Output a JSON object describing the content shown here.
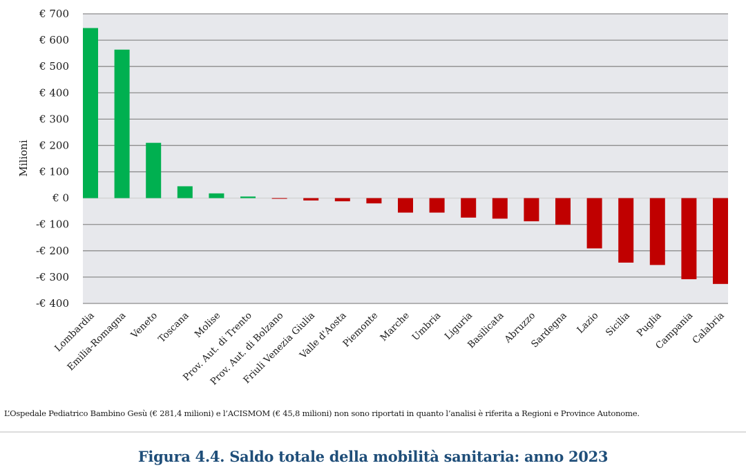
{
  "chart_data": {
    "type": "bar",
    "title": "Figura 4.4. Saldo totale della mobilità sanitaria: anno 2023",
    "xlabel": "",
    "ylabel": "Milioni",
    "ylim": [
      -400,
      700
    ],
    "ytick_step": 100,
    "ytick_labels": [
      "€ 700",
      "€ 600",
      "€ 500",
      "€ 400",
      "€ 300",
      "€ 200",
      "€ 100",
      "€ 0",
      "-€ 100",
      "-€ 200",
      "-€ 300",
      "-€ 400"
    ],
    "ytick_values": [
      700,
      600,
      500,
      400,
      300,
      200,
      100,
      0,
      -100,
      -200,
      -300,
      -400
    ],
    "grid": true,
    "legend": "none",
    "categories": [
      "Lombardia",
      "Emilia-Romagna",
      "Veneto",
      "Toscana",
      "Molise",
      "Prov. Aut. di Trento",
      "Prov. Aut. di Bolzano",
      "Friuli Venezia Giulia",
      "Valle d'Aosta",
      "Piemonte",
      "Marche",
      "Umbria",
      "Liguria",
      "Basilicata",
      "Abruzzo",
      "Sardegna",
      "Lazio",
      "Sicilia",
      "Puglia",
      "Campania",
      "Calabria"
    ],
    "values": [
      646,
      564,
      210,
      45,
      18,
      6,
      -2,
      -9,
      -12,
      -20,
      -55,
      -55,
      -74,
      -78,
      -88,
      -101,
      -191,
      -245,
      -254,
      -308,
      -326
    ],
    "colors": {
      "positive": "#00b050",
      "negative": "#c00000",
      "plot_background": "#e7e8ec",
      "gridline": "#8c8c8c"
    }
  },
  "footnote": "L’Ospedale Pediatrico Bambino Gesù (€ 281,4 milioni) e l’ACISMOM (€ 45,8 milioni) non sono riportati in quanto l’analisi è riferita a Regioni e Province Autonome.",
  "caption": "Figura 4.4. Saldo totale della mobilità sanitaria: anno 2023"
}
